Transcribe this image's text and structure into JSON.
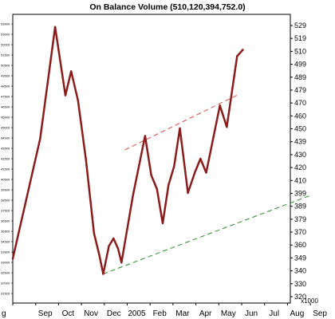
{
  "chart_data": {
    "type": "line",
    "title": "On Balance Volume (510,120,394,752.0)",
    "scale_label": "x1000",
    "x_labels": [
      "g",
      "Sep",
      "Oct",
      "Nov",
      "Dec",
      "2005",
      "Feb",
      "Mar",
      "Apr",
      "May",
      "Jun",
      "Jul",
      "Aug",
      "Sep"
    ],
    "y_right_ticks": [
      "529",
      "519",
      "510",
      "499",
      "489",
      "479",
      "470",
      "460",
      "450",
      "439",
      "430",
      "420",
      "410",
      "399",
      "389",
      "379",
      "370",
      "360",
      "349",
      "340",
      "330",
      "320"
    ],
    "y_left_ticks": [
      "53909",
      "53009",
      "52009",
      "51509",
      "50509",
      "49509",
      "48509",
      "47509",
      "46509",
      "45909",
      "45009",
      "44509",
      "43509",
      "42509",
      "41509",
      "40509",
      "39509",
      "38509",
      "37509",
      "36509",
      "35509",
      "34509",
      "33909",
      "33009",
      "32509",
      "32009",
      "31509"
    ],
    "ylim": [
      310,
      538
    ],
    "series": [
      {
        "color": "#8b1c1c",
        "points": [
          {
            "x": 0.0,
            "y": 345
          },
          {
            "x": 1.2,
            "y": 440
          },
          {
            "x": 1.85,
            "y": 528
          },
          {
            "x": 2.3,
            "y": 474
          },
          {
            "x": 2.55,
            "y": 493
          },
          {
            "x": 2.85,
            "y": 470
          },
          {
            "x": 3.2,
            "y": 423
          },
          {
            "x": 3.55,
            "y": 365
          },
          {
            "x": 3.78,
            "y": 348
          },
          {
            "x": 3.95,
            "y": 333
          },
          {
            "x": 4.2,
            "y": 355
          },
          {
            "x": 4.4,
            "y": 361
          },
          {
            "x": 4.6,
            "y": 353
          },
          {
            "x": 4.75,
            "y": 342
          },
          {
            "x": 5.25,
            "y": 395
          },
          {
            "x": 5.78,
            "y": 442
          },
          {
            "x": 6.05,
            "y": 411
          },
          {
            "x": 6.3,
            "y": 400
          },
          {
            "x": 6.55,
            "y": 373
          },
          {
            "x": 6.8,
            "y": 403
          },
          {
            "x": 7.05,
            "y": 418
          },
          {
            "x": 7.3,
            "y": 448
          },
          {
            "x": 7.65,
            "y": 397
          },
          {
            "x": 7.95,
            "y": 413
          },
          {
            "x": 8.2,
            "y": 424
          },
          {
            "x": 8.45,
            "y": 413
          },
          {
            "x": 9.05,
            "y": 466
          },
          {
            "x": 9.35,
            "y": 449
          },
          {
            "x": 9.8,
            "y": 505
          },
          {
            "x": 10.05,
            "y": 510
          }
        ]
      }
    ],
    "trendlines": [
      {
        "color": "#e05050",
        "dash": "dashed",
        "from": {
          "x": 4.9,
          "y": 431
        },
        "to": {
          "x": 9.9,
          "y": 475
        }
      },
      {
        "color": "#2e8b2e",
        "dash": "dashed",
        "from": {
          "x": 3.95,
          "y": 333
        },
        "to": {
          "x": 13.0,
          "y": 395
        }
      }
    ]
  }
}
